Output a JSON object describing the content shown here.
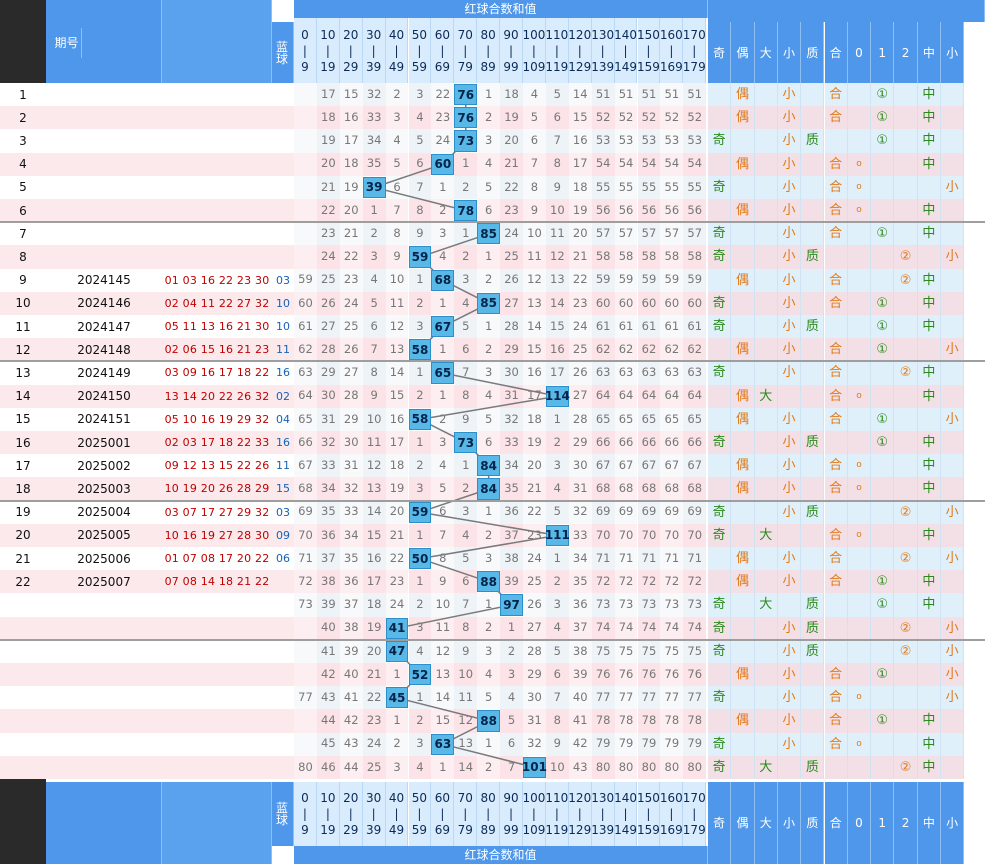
{
  "header": {
    "title": "红球合数和值",
    "issue_label": "期号",
    "blue_label": "蓝球",
    "ranges": [
      [
        "0",
        "9"
      ],
      [
        "10",
        "19"
      ],
      [
        "20",
        "29"
      ],
      [
        "30",
        "39"
      ],
      [
        "40",
        "49"
      ],
      [
        "50",
        "59"
      ],
      [
        "60",
        "69"
      ],
      [
        "70",
        "79"
      ],
      [
        "80",
        "89"
      ],
      [
        "90",
        "99"
      ],
      [
        "100",
        "109"
      ],
      [
        "110",
        "119"
      ],
      [
        "120",
        "129"
      ],
      [
        "130",
        "139"
      ],
      [
        "140",
        "149"
      ],
      [
        "150",
        "159"
      ],
      [
        "160",
        "169"
      ],
      [
        "170",
        "179"
      ]
    ],
    "features": [
      "奇",
      "偶",
      "大",
      "小",
      "质",
      "合",
      "0",
      "1",
      "2",
      "中",
      "小"
    ]
  },
  "footer": {
    "title": "红球合数和值",
    "blue_label": "蓝球"
  },
  "colors": {
    "header_bg": "#4f97ea",
    "hit_bg": "#58b8e8",
    "red_ball": "#c00000",
    "blue_ball": "#1463b6",
    "odd": "#2a8a1a",
    "even": "#e07a1a"
  },
  "rows": [
    {
      "n": "1",
      "issue": "",
      "balls": "",
      "blue": "",
      "hit_col": 7,
      "hit": "76",
      "miss": [
        "",
        "17",
        "15",
        "32",
        "2",
        "3",
        "22",
        "",
        "1",
        "18",
        "4",
        "5",
        "14",
        "51",
        "51",
        "51",
        "51",
        "51"
      ],
      "f": [
        "",
        "偶",
        "",
        "小",
        "",
        "合",
        "",
        "①",
        "",
        "中",
        ""
      ]
    },
    {
      "n": "2",
      "issue": "",
      "balls": "",
      "blue": "",
      "hit_col": 7,
      "hit": "76",
      "miss": [
        "",
        "18",
        "16",
        "33",
        "3",
        "4",
        "23",
        "",
        "2",
        "19",
        "5",
        "6",
        "15",
        "52",
        "52",
        "52",
        "52",
        "52"
      ],
      "f": [
        "",
        "偶",
        "",
        "小",
        "",
        "合",
        "",
        "①",
        "",
        "中",
        ""
      ]
    },
    {
      "n": "3",
      "issue": "",
      "balls": "",
      "blue": "",
      "hit_col": 7,
      "hit": "73",
      "miss": [
        "",
        "19",
        "17",
        "34",
        "4",
        "5",
        "24",
        "",
        "3",
        "20",
        "6",
        "7",
        "16",
        "53",
        "53",
        "53",
        "53",
        "53"
      ],
      "f": [
        "奇",
        "",
        "",
        "小",
        "质",
        "",
        "",
        "①",
        "",
        "中",
        ""
      ]
    },
    {
      "n": "4",
      "issue": "",
      "balls": "",
      "blue": "",
      "hit_col": 6,
      "hit": "60",
      "miss": [
        "",
        "20",
        "18",
        "35",
        "5",
        "6",
        "",
        "1",
        "4",
        "21",
        "7",
        "8",
        "17",
        "54",
        "54",
        "54",
        "54",
        "54"
      ],
      "f": [
        "",
        "偶",
        "",
        "小",
        "",
        "合",
        "o",
        "",
        "",
        "中",
        ""
      ]
    },
    {
      "n": "5",
      "issue": "",
      "balls": "",
      "blue": "",
      "hit_col": 3,
      "hit": "39",
      "miss": [
        "",
        "21",
        "19",
        "",
        "6",
        "7",
        "1",
        "2",
        "5",
        "22",
        "8",
        "9",
        "18",
        "55",
        "55",
        "55",
        "55",
        "55"
      ],
      "f": [
        "奇",
        "",
        "",
        "小",
        "",
        "合",
        "o",
        "",
        "",
        "",
        "小"
      ]
    },
    {
      "n": "6",
      "issue": "",
      "balls": "",
      "blue": "",
      "hit_col": 7,
      "hit": "78",
      "miss": [
        "",
        "22",
        "20",
        "1",
        "7",
        "8",
        "2",
        "",
        "6",
        "23",
        "9",
        "10",
        "19",
        "56",
        "56",
        "56",
        "56",
        "56"
      ],
      "f": [
        "",
        "偶",
        "",
        "小",
        "",
        "合",
        "o",
        "",
        "",
        "中",
        ""
      ]
    },
    {
      "n": "7",
      "issue": "",
      "balls": "",
      "blue": "",
      "hit_col": 8,
      "hit": "85",
      "miss": [
        "",
        "23",
        "21",
        "2",
        "8",
        "9",
        "3",
        "1",
        "",
        "24",
        "10",
        "11",
        "20",
        "57",
        "57",
        "57",
        "57",
        "57"
      ],
      "f": [
        "奇",
        "",
        "",
        "小",
        "",
        "合",
        "",
        "①",
        "",
        "中",
        ""
      ]
    },
    {
      "n": "8",
      "issue": "",
      "balls": "",
      "blue": "",
      "hit_col": 5,
      "hit": "59",
      "miss": [
        "",
        "24",
        "22",
        "3",
        "9",
        "",
        "4",
        "2",
        "1",
        "25",
        "11",
        "12",
        "21",
        "58",
        "58",
        "58",
        "58",
        "58"
      ],
      "f": [
        "奇",
        "",
        "",
        "小",
        "质",
        "",
        "",
        "",
        "②",
        "",
        "小"
      ]
    },
    {
      "n": "9",
      "issue": "2024145",
      "balls": "01 03 16 22 23 30",
      "blue": "03",
      "hit_col": 6,
      "hit": "68",
      "miss": [
        "59",
        "25",
        "23",
        "4",
        "10",
        "1",
        "",
        "3",
        "2",
        "26",
        "12",
        "13",
        "22",
        "59",
        "59",
        "59",
        "59",
        "59"
      ],
      "f": [
        "",
        "偶",
        "",
        "小",
        "",
        "合",
        "",
        "",
        "②",
        "中",
        ""
      ]
    },
    {
      "n": "10",
      "issue": "2024146",
      "balls": "02 04 11 22 27 32",
      "blue": "10",
      "hit_col": 8,
      "hit": "85",
      "miss": [
        "60",
        "26",
        "24",
        "5",
        "11",
        "2",
        "1",
        "4",
        "",
        "27",
        "13",
        "14",
        "23",
        "60",
        "60",
        "60",
        "60",
        "60"
      ],
      "f": [
        "奇",
        "",
        "",
        "小",
        "",
        "合",
        "",
        "①",
        "",
        "中",
        ""
      ]
    },
    {
      "n": "11",
      "issue": "2024147",
      "balls": "05 11 13 16 21 30",
      "blue": "10",
      "hit_col": 6,
      "hit": "67",
      "miss": [
        "61",
        "27",
        "25",
        "6",
        "12",
        "3",
        "",
        "5",
        "1",
        "28",
        "14",
        "15",
        "24",
        "61",
        "61",
        "61",
        "61",
        "61"
      ],
      "f": [
        "奇",
        "",
        "",
        "小",
        "质",
        "",
        "",
        "①",
        "",
        "中",
        ""
      ]
    },
    {
      "n": "12",
      "issue": "2024148",
      "balls": "02 06 15 16 21 23",
      "blue": "11",
      "hit_col": 5,
      "hit": "58",
      "miss": [
        "62",
        "28",
        "26",
        "7",
        "13",
        "",
        "1",
        "6",
        "2",
        "29",
        "15",
        "16",
        "25",
        "62",
        "62",
        "62",
        "62",
        "62"
      ],
      "f": [
        "",
        "偶",
        "",
        "小",
        "",
        "合",
        "",
        "①",
        "",
        "",
        "小"
      ]
    },
    {
      "n": "13",
      "issue": "2024149",
      "balls": "03 09 16 17 18 22",
      "blue": "16",
      "hit_col": 6,
      "hit": "65",
      "miss": [
        "63",
        "29",
        "27",
        "8",
        "14",
        "1",
        "",
        "7",
        "3",
        "30",
        "16",
        "17",
        "26",
        "63",
        "63",
        "63",
        "63",
        "63"
      ],
      "f": [
        "奇",
        "",
        "",
        "小",
        "",
        "合",
        "",
        "",
        "②",
        "中",
        ""
      ]
    },
    {
      "n": "14",
      "issue": "2024150",
      "balls": "13 14 20 22 26 32",
      "blue": "02",
      "hit_col": 11,
      "hit": "114",
      "miss": [
        "64",
        "30",
        "28",
        "9",
        "15",
        "2",
        "1",
        "8",
        "4",
        "31",
        "17",
        "",
        "27",
        "64",
        "64",
        "64",
        "64",
        "64"
      ],
      "f": [
        "",
        "偶",
        "大",
        "",
        "",
        "合",
        "o",
        "",
        "",
        "中",
        ""
      ]
    },
    {
      "n": "15",
      "issue": "2024151",
      "balls": "05 10 16 19 29 32",
      "blue": "04",
      "hit_col": 5,
      "hit": "58",
      "miss": [
        "65",
        "31",
        "29",
        "10",
        "16",
        "",
        "2",
        "9",
        "5",
        "32",
        "18",
        "1",
        "28",
        "65",
        "65",
        "65",
        "65",
        "65"
      ],
      "f": [
        "",
        "偶",
        "",
        "小",
        "",
        "合",
        "",
        "①",
        "",
        "",
        "小"
      ]
    },
    {
      "n": "16",
      "issue": "2025001",
      "balls": "02 03 17 18 22 33",
      "blue": "16",
      "hit_col": 7,
      "hit": "73",
      "miss": [
        "66",
        "32",
        "30",
        "11",
        "17",
        "1",
        "3",
        "",
        "6",
        "33",
        "19",
        "2",
        "29",
        "66",
        "66",
        "66",
        "66",
        "66"
      ],
      "f": [
        "奇",
        "",
        "",
        "小",
        "质",
        "",
        "",
        "①",
        "",
        "中",
        ""
      ]
    },
    {
      "n": "17",
      "issue": "2025002",
      "balls": "09 12 13 15 22 26",
      "blue": "11",
      "hit_col": 8,
      "hit": "84",
      "miss": [
        "67",
        "33",
        "31",
        "12",
        "18",
        "2",
        "4",
        "1",
        "",
        "34",
        "20",
        "3",
        "30",
        "67",
        "67",
        "67",
        "67",
        "67"
      ],
      "f": [
        "",
        "偶",
        "",
        "小",
        "",
        "合",
        "o",
        "",
        "",
        "中",
        ""
      ]
    },
    {
      "n": "18",
      "issue": "2025003",
      "balls": "10 19 20 26 28 29",
      "blue": "15",
      "hit_col": 8,
      "hit": "84",
      "miss": [
        "68",
        "34",
        "32",
        "13",
        "19",
        "3",
        "5",
        "2",
        "",
        "35",
        "21",
        "4",
        "31",
        "68",
        "68",
        "68",
        "68",
        "68"
      ],
      "f": [
        "",
        "偶",
        "",
        "小",
        "",
        "合",
        "o",
        "",
        "",
        "中",
        ""
      ]
    },
    {
      "n": "19",
      "issue": "2025004",
      "balls": "03 07 17 27 29 32",
      "blue": "03",
      "hit_col": 5,
      "hit": "59",
      "miss": [
        "69",
        "35",
        "33",
        "14",
        "20",
        "",
        "6",
        "3",
        "1",
        "36",
        "22",
        "5",
        "32",
        "69",
        "69",
        "69",
        "69",
        "69"
      ],
      "f": [
        "奇",
        "",
        "",
        "小",
        "质",
        "",
        "",
        "",
        "②",
        "",
        "小"
      ]
    },
    {
      "n": "20",
      "issue": "2025005",
      "balls": "10 16 19 27 28 30",
      "blue": "09",
      "hit_col": 11,
      "hit": "111",
      "miss": [
        "70",
        "36",
        "34",
        "15",
        "21",
        "1",
        "7",
        "4",
        "2",
        "37",
        "23",
        "",
        "33",
        "70",
        "70",
        "70",
        "70",
        "70"
      ],
      "f": [
        "奇",
        "",
        "大",
        "",
        "",
        "合",
        "o",
        "",
        "",
        "中",
        ""
      ]
    },
    {
      "n": "21",
      "issue": "2025006",
      "balls": "01 07 08 17 20 22",
      "blue": "06",
      "hit_col": 5,
      "hit": "50",
      "miss": [
        "71",
        "37",
        "35",
        "16",
        "22",
        "",
        "8",
        "5",
        "3",
        "38",
        "24",
        "1",
        "34",
        "71",
        "71",
        "71",
        "71",
        "71"
      ],
      "f": [
        "",
        "偶",
        "",
        "小",
        "",
        "合",
        "",
        "",
        "②",
        "",
        "小"
      ]
    },
    {
      "n": "22",
      "issue": "2025007",
      "balls": "07 08 14 18 21 22",
      "blue": "",
      "hit_col": 8,
      "hit": "88",
      "miss": [
        "72",
        "38",
        "36",
        "17",
        "23",
        "1",
        "9",
        "6",
        "",
        "39",
        "25",
        "2",
        "35",
        "72",
        "72",
        "72",
        "72",
        "72"
      ],
      "f": [
        "",
        "偶",
        "",
        "小",
        "",
        "合",
        "",
        "①",
        "",
        "中",
        ""
      ]
    },
    {
      "n": "",
      "issue": "",
      "balls": "",
      "blue": "",
      "hit_col": 9,
      "hit": "97",
      "miss": [
        "73",
        "39",
        "37",
        "18",
        "24",
        "2",
        "10",
        "7",
        "1",
        "",
        "26",
        "3",
        "36",
        "73",
        "73",
        "73",
        "73",
        "73"
      ],
      "f": [
        "奇",
        "",
        "大",
        "",
        "质",
        "",
        "",
        "①",
        "",
        "中",
        ""
      ]
    },
    {
      "n": "",
      "issue": "",
      "balls": "",
      "blue": "",
      "hit_col": 4,
      "hit": "41",
      "miss": [
        "",
        "40",
        "38",
        "19",
        "",
        "3",
        "11",
        "8",
        "2",
        "1",
        "27",
        "4",
        "37",
        "74",
        "74",
        "74",
        "74",
        "74"
      ],
      "f": [
        "奇",
        "",
        "",
        "小",
        "质",
        "",
        "",
        "",
        "②",
        "",
        "小"
      ]
    },
    {
      "n": "",
      "issue": "",
      "balls": "",
      "blue": "",
      "hit_col": 4,
      "hit": "47",
      "miss": [
        "",
        "41",
        "39",
        "20",
        "",
        "4",
        "12",
        "9",
        "3",
        "2",
        "28",
        "5",
        "38",
        "75",
        "75",
        "75",
        "75",
        "75"
      ],
      "f": [
        "奇",
        "",
        "",
        "小",
        "质",
        "",
        "",
        "",
        "②",
        "",
        "小"
      ]
    },
    {
      "n": "",
      "issue": "",
      "balls": "",
      "blue": "",
      "hit_col": 5,
      "hit": "52",
      "miss": [
        "",
        "42",
        "40",
        "21",
        "1",
        "",
        "13",
        "10",
        "4",
        "3",
        "29",
        "6",
        "39",
        "76",
        "76",
        "76",
        "76",
        "76"
      ],
      "f": [
        "",
        "偶",
        "",
        "小",
        "",
        "合",
        "",
        "①",
        "",
        "",
        "小"
      ]
    },
    {
      "n": "",
      "issue": "",
      "balls": "",
      "blue": "",
      "hit_col": 4,
      "hit": "45",
      "miss": [
        "77",
        "43",
        "41",
        "22",
        "",
        "1",
        "14",
        "11",
        "5",
        "4",
        "30",
        "7",
        "40",
        "77",
        "77",
        "77",
        "77",
        "77"
      ],
      "f": [
        "奇",
        "",
        "",
        "小",
        "",
        "合",
        "o",
        "",
        "",
        "",
        "小"
      ]
    },
    {
      "n": "",
      "issue": "",
      "balls": "",
      "blue": "",
      "hit_col": 8,
      "hit": "88",
      "miss": [
        "",
        "44",
        "42",
        "23",
        "1",
        "2",
        "15",
        "12",
        "",
        "5",
        "31",
        "8",
        "41",
        "78",
        "78",
        "78",
        "78",
        "78"
      ],
      "f": [
        "",
        "偶",
        "",
        "小",
        "",
        "合",
        "",
        "①",
        "",
        "中",
        ""
      ]
    },
    {
      "n": "",
      "issue": "",
      "balls": "",
      "blue": "",
      "hit_col": 6,
      "hit": "63",
      "miss": [
        "",
        "45",
        "43",
        "24",
        "2",
        "3",
        "",
        "13",
        "1",
        "6",
        "32",
        "9",
        "42",
        "79",
        "79",
        "79",
        "79",
        "79"
      ],
      "f": [
        "奇",
        "",
        "",
        "小",
        "",
        "合",
        "o",
        "",
        "",
        "中",
        ""
      ]
    },
    {
      "n": "",
      "issue": "",
      "balls": "",
      "blue": "",
      "hit_col": 10,
      "hit": "101",
      "miss": [
        "80",
        "46",
        "44",
        "25",
        "3",
        "4",
        "1",
        "14",
        "2",
        "7",
        "",
        "10",
        "43",
        "80",
        "80",
        "80",
        "80",
        "80"
      ],
      "f": [
        "奇",
        "",
        "大",
        "",
        "质",
        "",
        "",
        "",
        "②",
        "中",
        ""
      ]
    }
  ]
}
